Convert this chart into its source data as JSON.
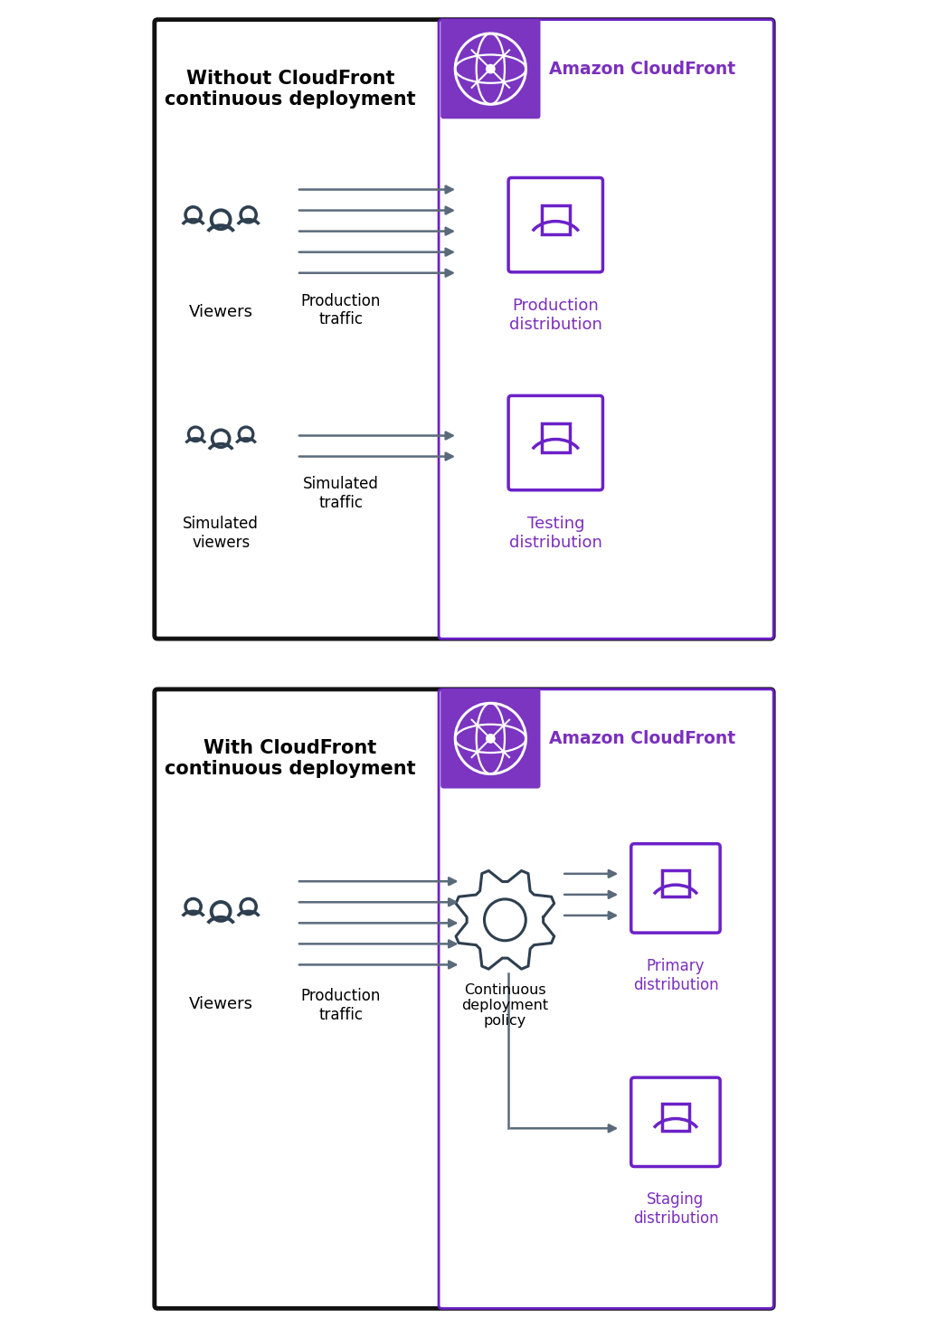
{
  "fig_width": 10.26,
  "fig_height": 14.68,
  "bg_color": "#ffffff",
  "border_color": "#111111",
  "purple_medium": "#6b21c8",
  "purple_header_bg": "#7b35c1",
  "purple_text": "#7b2fbe",
  "gray_icon": "#2e3f4f",
  "arrow_color": "#5a6a7a",
  "panel1_title": "Without CloudFront\ncontinuous deployment",
  "panel2_title": "With CloudFront\ncontinuous deployment",
  "cloudfront_label": "Amazon CloudFront",
  "viewers_label": "Viewers",
  "simulated_viewers_label": "Simulated\nviewers",
  "prod_traffic_label": "Production\ntraffic",
  "sim_traffic_label": "Simulated\ntraffic",
  "prod_dist_label": "Production\ndistribution",
  "test_dist_label": "Testing\ndistribution",
  "prod_traffic_label2": "Production\ntraffic",
  "policy_label": "Continuous\ndeployment\npolicy",
  "primary_dist_label": "Primary\ndistribution",
  "staging_dist_label": "Staging\ndistribution"
}
